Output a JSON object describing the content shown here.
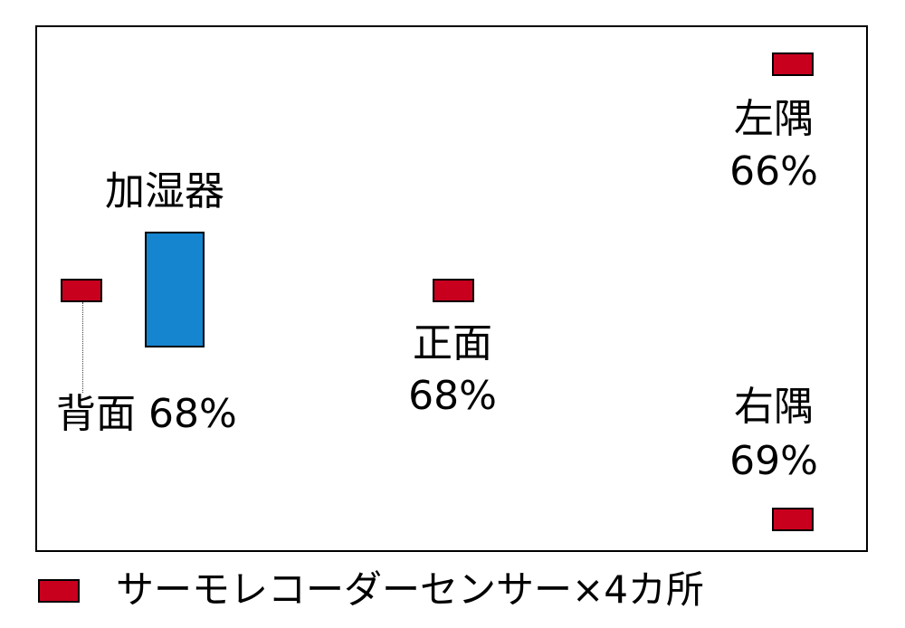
{
  "colors": {
    "sensor": "#c8001e",
    "humidifier": "#1585d0"
  },
  "humidifier": {
    "label": "加湿器"
  },
  "sensors": {
    "back": {
      "name": "背面",
      "value": "68%"
    },
    "front": {
      "name": "正面",
      "value": "68%"
    },
    "left": {
      "name": "左隅",
      "value": "66%"
    },
    "right": {
      "name": "右隅",
      "value": "69%"
    }
  },
  "legend": {
    "text": "サーモレコーダーセンサー×4カ所"
  }
}
